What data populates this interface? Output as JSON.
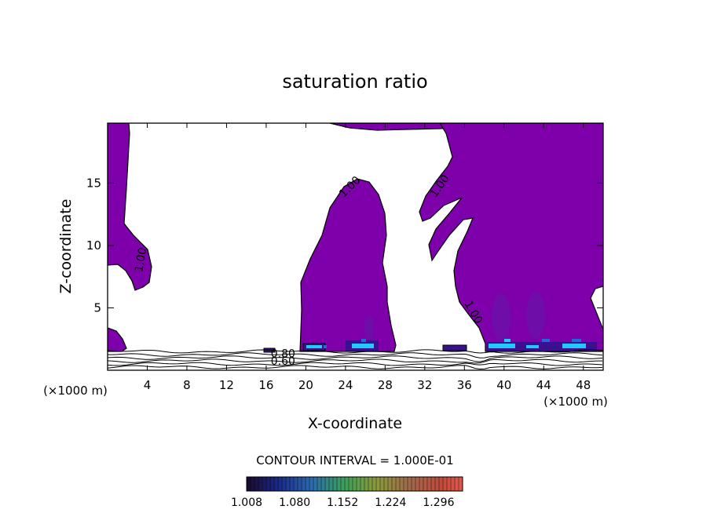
{
  "chart_data": {
    "type": "contour",
    "title": "saturation ratio",
    "xlabel": "X-coordinate",
    "ylabel": "Z-coordinate",
    "x_unit": "(×1000 m)",
    "y_unit": "(×1000 m)",
    "xlim": [
      0,
      50
    ],
    "ylim": [
      0,
      19.8
    ],
    "x_ticks": [
      4,
      8,
      12,
      16,
      20,
      24,
      28,
      32,
      36,
      40,
      44,
      48
    ],
    "y_ticks": [
      5,
      10,
      15
    ],
    "contour_labels": [
      {
        "text": "1.00",
        "x": 3.7,
        "y": 8.8,
        "rot": -80
      },
      {
        "text": "1.00",
        "x": 24.7,
        "y": 14.5,
        "rot": -45
      },
      {
        "text": "1.00",
        "x": 33.8,
        "y": 14.6,
        "rot": -55
      },
      {
        "text": "1.00",
        "x": 36.6,
        "y": 4.5,
        "rot": 60
      },
      {
        "text": "0.80",
        "x": 17.7,
        "y": 1.05,
        "rot": 0
      },
      {
        "text": "0.60",
        "x": 17.7,
        "y": 0.45,
        "rot": 0
      }
    ],
    "contour_interval_text": "CONTOUR INTERVAL = 1.000E-01",
    "colorbar": {
      "ticks": [
        "1.008",
        "1.080",
        "1.152",
        "1.224",
        "1.296"
      ],
      "min": 1.008,
      "max": 1.332
    },
    "colors": {
      "fill": "#7e00aa",
      "deep": "#3a1090",
      "line": "#000000",
      "hot": "#22c8ff"
    }
  }
}
